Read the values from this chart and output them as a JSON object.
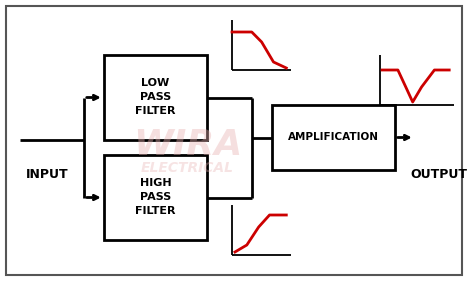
{
  "bg_color": "#ffffff",
  "border_color": "#555555",
  "box_color": "#ffffff",
  "box_edge_color": "#000000",
  "line_color": "#000000",
  "red_color": "#cc0000",
  "text_color": "#000000",
  "watermark_color": "#e8b0b0",
  "lpf_label": "LOW\nPASS\nFILTER",
  "hpf_label": "HIGH\nPASS\nFILTER",
  "amp_label": "AMPLIFICATION",
  "input_label": "INPUT",
  "output_label": "OUTPUT"
}
